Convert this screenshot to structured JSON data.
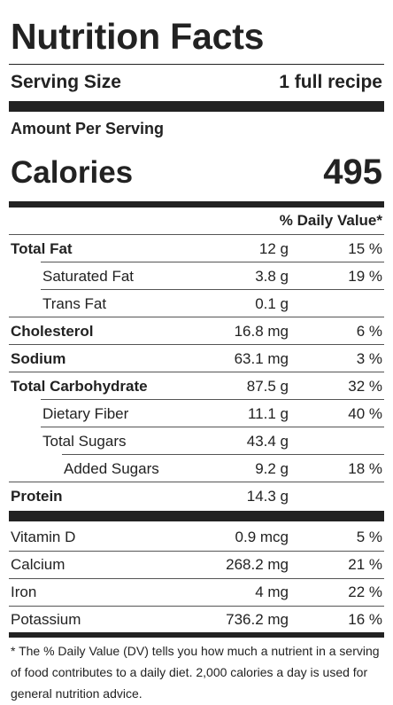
{
  "title": "Nutrition Facts",
  "serving": {
    "label": "Serving Size",
    "value": "1 full recipe"
  },
  "amount_per_serving": "Amount Per Serving",
  "calories": {
    "label": "Calories",
    "value": "495"
  },
  "daily_value_header": "% Daily Value*",
  "nutrients": [
    {
      "name": "Total Fat",
      "amount": "12 g",
      "dv": "15 %"
    },
    {
      "name": "Saturated Fat",
      "amount": "3.8 g",
      "dv": "19 %"
    },
    {
      "name": "Trans Fat",
      "amount": "0.1 g",
      "dv": ""
    },
    {
      "name": "Cholesterol",
      "amount": "16.8 mg",
      "dv": "6 %"
    },
    {
      "name": "Sodium",
      "amount": "63.1 mg",
      "dv": "3 %"
    },
    {
      "name": "Total Carbohydrate",
      "amount": "87.5 g",
      "dv": "32 %"
    },
    {
      "name": "Dietary Fiber",
      "amount": "11.1 g",
      "dv": "40 %"
    },
    {
      "name": "Total Sugars",
      "amount": "43.4 g",
      "dv": ""
    },
    {
      "name": "Added Sugars",
      "amount": "9.2 g",
      "dv": "18 %"
    },
    {
      "name": "Protein",
      "amount": "14.3 g",
      "dv": ""
    }
  ],
  "vitamins": [
    {
      "name": "Vitamin D",
      "amount": "0.9 mcg",
      "dv": "5 %"
    },
    {
      "name": "Calcium",
      "amount": "268.2 mg",
      "dv": "21 %"
    },
    {
      "name": "Iron",
      "amount": "4 mg",
      "dv": "22 %"
    },
    {
      "name": "Potassium",
      "amount": "736.2 mg",
      "dv": "16 %"
    }
  ],
  "footnote": "* The % Daily Value (DV) tells you how much a nutrient in a serving of food contributes to a daily diet. 2,000 calories a day is used for general nutrition advice."
}
